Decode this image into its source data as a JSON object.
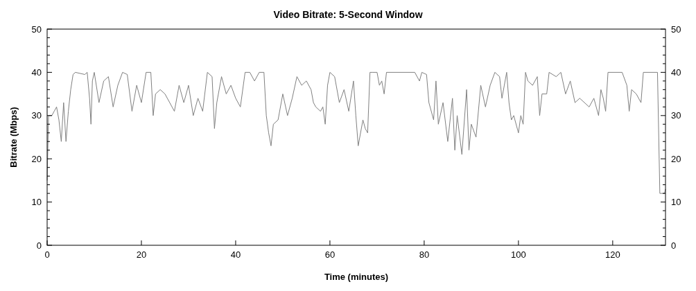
{
  "chart_data": {
    "type": "line",
    "title": "Video Bitrate: 5-Second Window",
    "xlabel": "Time (minutes)",
    "ylabel": "Bitrate (Mbps)",
    "xlim": [
      0,
      131.2
    ],
    "xticks": [
      0,
      20,
      40,
      60,
      80,
      100,
      120
    ],
    "ylim": [
      0,
      50
    ],
    "yticks": [
      0,
      {
        "value": 2,
        "label": null
      },
      {
        "value": 4,
        "label": null
      },
      {
        "value": 6,
        "label": null
      },
      {
        "value": 8,
        "label": null
      },
      10,
      {
        "value": 12,
        "label": null
      },
      {
        "value": 14,
        "label": null
      },
      {
        "value": 16,
        "label": null
      },
      {
        "value": 18,
        "label": null
      },
      20,
      {
        "value": 22,
        "label": null
      },
      {
        "value": 24,
        "label": null
      },
      {
        "value": 26,
        "label": null
      },
      {
        "value": 28,
        "label": null
      },
      30,
      {
        "value": 32,
        "label": null
      },
      {
        "value": 34,
        "label": null
      },
      {
        "value": 36,
        "label": null
      },
      {
        "value": 38,
        "label": null
      },
      40,
      {
        "value": 42,
        "label": null
      },
      {
        "value": 44,
        "label": null
      },
      {
        "value": 46,
        "label": null
      },
      {
        "value": 48,
        "label": null
      },
      50
    ],
    "y2lim": [
      0,
      50
    ],
    "y2ticks": [
      0,
      {
        "value": 2,
        "label": null
      },
      {
        "value": 4,
        "label": null
      },
      {
        "value": 6,
        "label": null
      },
      {
        "value": 8,
        "label": null
      },
      10,
      {
        "value": 12,
        "label": null
      },
      {
        "value": 14,
        "label": null
      },
      {
        "value": 16,
        "label": null
      },
      {
        "value": 18,
        "label": null
      },
      20,
      {
        "value": 22,
        "label": null
      },
      {
        "value": 24,
        "label": null
      },
      {
        "value": 26,
        "label": null
      },
      {
        "value": 28,
        "label": null
      },
      30,
      {
        "value": 32,
        "label": null
      },
      {
        "value": 34,
        "label": null
      },
      {
        "value": 36,
        "label": null
      },
      {
        "value": 38,
        "label": null
      },
      40,
      {
        "value": 42,
        "label": null
      },
      {
        "value": 44,
        "label": null
      },
      {
        "value": 46,
        "label": null
      },
      {
        "value": 48,
        "label": null
      },
      50
    ],
    "grid": false,
    "line_style": "solid",
    "series": [
      {
        "color": "#808080",
        "x": [
          0,
          0.3,
          1,
          1.5,
          2,
          2.5,
          3,
          3.5,
          4,
          4.5,
          5,
          5.5,
          6,
          8,
          8.5,
          9,
          9.3,
          9.6,
          10,
          11,
          12,
          13,
          14,
          15,
          16,
          17,
          18,
          19,
          20,
          21,
          22,
          22.5,
          23,
          24,
          25,
          26,
          27,
          28,
          29,
          30,
          31,
          32,
          33,
          34,
          35,
          35.5,
          36,
          37,
          38,
          39,
          40,
          41,
          42,
          43,
          44,
          45,
          46,
          46.5,
          47,
          47.5,
          48,
          49,
          50,
          51,
          52,
          53,
          54,
          55,
          56,
          56.5,
          57,
          58,
          58.5,
          59,
          59.5,
          60,
          61,
          62,
          63,
          64,
          65,
          65.5,
          66,
          67,
          67.5,
          68,
          68.5,
          69,
          70,
          70.5,
          71,
          71.5,
          72,
          78,
          79,
          79.5,
          80.5,
          81,
          82,
          82.5,
          83,
          84,
          85,
          86,
          86.5,
          87,
          88,
          89,
          89.5,
          90,
          91,
          92,
          93,
          94,
          95,
          96,
          96.5,
          97,
          97.5,
          98,
          98.5,
          99,
          100,
          100.5,
          101,
          101.5,
          102,
          103,
          104,
          104.5,
          105,
          106,
          106.5,
          108,
          109,
          110,
          111,
          112,
          113,
          114,
          115,
          116,
          117,
          117.5,
          118,
          118.5,
          119,
          122,
          123,
          123.5,
          124,
          125,
          126,
          126.5,
          129.5,
          130,
          131,
          131.2
        ],
        "values": [
          15,
          30,
          30,
          31,
          32,
          29,
          24,
          33,
          24,
          31,
          36,
          39.5,
          40,
          39.5,
          40,
          34,
          28,
          38,
          40,
          33,
          38,
          39,
          32,
          37,
          40,
          39.5,
          31,
          37,
          33,
          40,
          40,
          30,
          35,
          36,
          35,
          33,
          31,
          37,
          33,
          37,
          30,
          34,
          31,
          40,
          39,
          27,
          33,
          39,
          35,
          37,
          34,
          32,
          40,
          40,
          38,
          40,
          40,
          30,
          26,
          23,
          28,
          29,
          35,
          30,
          34,
          39,
          37,
          38,
          36,
          33,
          32,
          31,
          32,
          28,
          37,
          40,
          39,
          33,
          36,
          31,
          38,
          30,
          23,
          29,
          27,
          26,
          40,
          40,
          40,
          37,
          38,
          35,
          40,
          40,
          38,
          40,
          39.5,
          33,
          29,
          38,
          28,
          33,
          24,
          34,
          22,
          30,
          21,
          36,
          22,
          28,
          25,
          37,
          32,
          37,
          40,
          39,
          34,
          37,
          40,
          33,
          29,
          30,
          26,
          30,
          28,
          40,
          38,
          37,
          39,
          30,
          35,
          35,
          40,
          39,
          40,
          35,
          38,
          33,
          34,
          33,
          32,
          34,
          30,
          36,
          34,
          31,
          40,
          40,
          37,
          31,
          36,
          35,
          33,
          40,
          40,
          12,
          12,
          13
        ]
      }
    ]
  }
}
